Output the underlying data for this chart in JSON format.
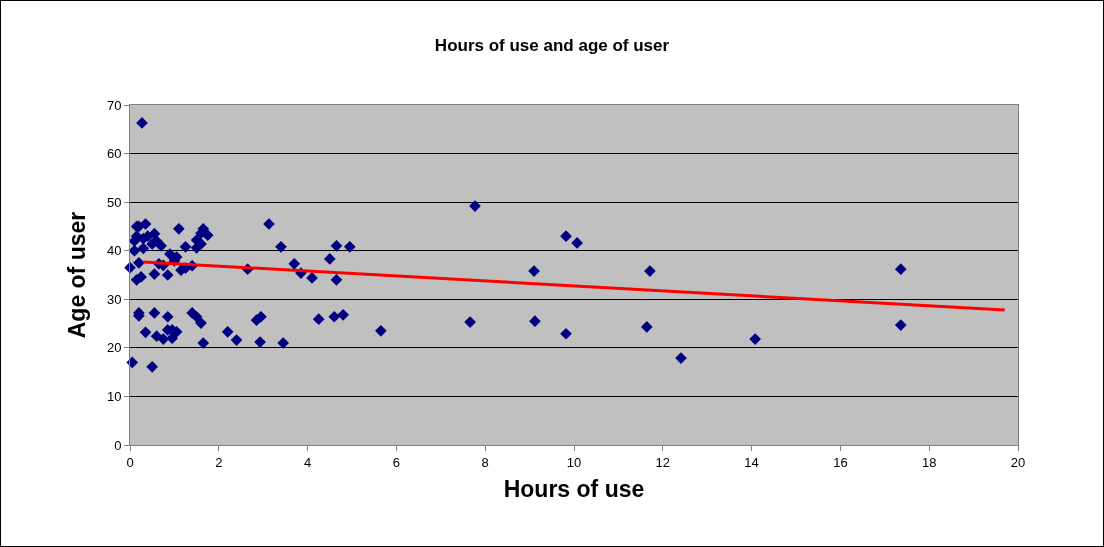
{
  "chart_data": {
    "type": "scatter",
    "title": "Hours of use and age of user",
    "xlabel": "Hours of use",
    "ylabel": "Age of user",
    "xlim": [
      0,
      20
    ],
    "xticks": [
      0,
      2,
      4,
      6,
      8,
      10,
      12,
      14,
      16,
      18,
      20
    ],
    "ylim": [
      0,
      70
    ],
    "yticks": [
      0,
      10,
      20,
      30,
      40,
      50,
      60,
      70
    ],
    "grid": "y",
    "marker": "diamond",
    "series": [
      {
        "color": "#000080",
        "x": [
          0.27,
          0,
          0.05,
          0.1,
          0.1,
          0.15,
          0.15,
          0.2,
          0.3,
          0.2,
          0.15,
          0.25,
          0.3,
          0.35,
          0.4,
          0.5,
          0.55,
          0.6,
          0.7,
          0.65,
          0.75,
          0.85,
          0.55,
          0.2,
          0.2,
          0.35,
          0.55,
          0.6,
          0.75,
          0.85,
          0.85,
          0.95,
          0.95,
          1.05,
          0.5,
          1.05,
          0.9,
          1.0,
          1.1,
          1.15,
          1.25,
          1.25,
          1.4,
          1.5,
          1.5,
          1.6,
          1.65,
          1.75,
          1.6,
          1.4,
          1.5,
          1.6,
          1.65,
          2.2,
          2.4,
          3.13,
          3.4,
          2.65,
          3.7,
          3.85,
          4.1,
          4.5,
          4.65,
          4.95,
          4.65,
          2.93,
          3.45,
          2.85,
          2.95,
          4.25,
          4.6,
          4.8,
          5.65,
          7.77,
          9.82,
          10.07,
          9.1,
          11.71,
          17.36,
          7.66,
          9.12,
          9.82,
          11.64,
          12.41,
          14.08,
          17.36
        ],
        "values": [
          66.3,
          36.5,
          17,
          40,
          42,
          43,
          45,
          45,
          42.5,
          37.5,
          34,
          34.6,
          40.5,
          45.5,
          43,
          41.4,
          43.5,
          42,
          41,
          37.3,
          37,
          35,
          35.2,
          27.2,
          26.6,
          23.2,
          27.2,
          22.4,
          21.8,
          23.7,
          26.4,
          22,
          23.7,
          23.3,
          16.1,
          38.7,
          39.3,
          37.9,
          44.5,
          36,
          36.4,
          40.8,
          36.9,
          40.6,
          42.2,
          43.6,
          44.5,
          43.2,
          41.4,
          27.2,
          26.4,
          25.1,
          21,
          23.3,
          21.6,
          45.5,
          40.8,
          36.2,
          37.3,
          35.4,
          34.4,
          38.3,
          41,
          40.8,
          34,
          21.2,
          21,
          25.7,
          26.4,
          25.9,
          26.4,
          26.8,
          23.5,
          49.2,
          43,
          41.6,
          35.8,
          35.8,
          36.2,
          25.3,
          25.5,
          22.9,
          24.3,
          17.9,
          21.8,
          24.7
        ]
      },
      {
        "type": "line",
        "color": "#ff0000",
        "marker": "none",
        "line_style": "solid",
        "x": [
          0.3,
          19.7
        ],
        "values": [
          37.7,
          27.8
        ]
      }
    ]
  }
}
